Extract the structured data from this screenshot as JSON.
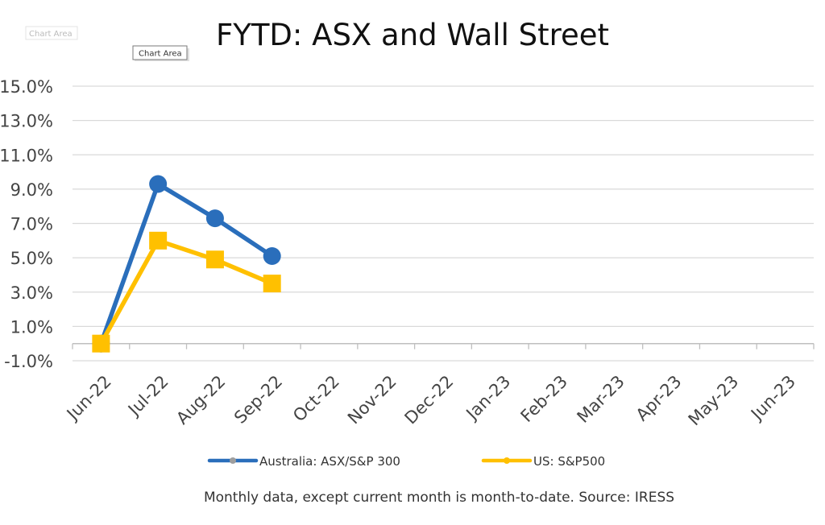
{
  "tooltips": {
    "ghost_label": "Chart Area",
    "hover_label": "Chart Area"
  },
  "footnote": "Monthly data, except current month is month-to-date.  Source: IRESS",
  "chart_data": {
    "type": "line",
    "title": "FYTD: ASX and Wall Street",
    "xlabel": "",
    "ylabel": "",
    "ylim": [
      -1.0,
      15.0
    ],
    "yticks": [
      -1.0,
      1.0,
      3.0,
      5.0,
      7.0,
      9.0,
      11.0,
      13.0,
      15.0
    ],
    "ytick_labels": [
      "-1.0%",
      "1.0%",
      "3.0%",
      "5.0%",
      "7.0%",
      "9.0%",
      "11.0%",
      "13.0%",
      "15.0%"
    ],
    "x_axis_crosses_at": 0,
    "categories": [
      "Jun-22",
      "Jul-22",
      "Aug-22",
      "Sep-22",
      "Oct-22",
      "Nov-22",
      "Dec-22",
      "Jan-23",
      "Feb-23",
      "Mar-23",
      "Apr-23",
      "May-23",
      "Jun-23"
    ],
    "grid": "horizontal",
    "legend_position": "bottom",
    "series": [
      {
        "name": "Australia: ASX/S&P 300",
        "values": [
          0.0,
          9.3,
          7.3,
          5.1,
          null,
          null,
          null,
          null,
          null,
          null,
          null,
          null,
          null
        ],
        "color": "#2A6EBB",
        "marker": "circle"
      },
      {
        "name": "US: S&P500",
        "values": [
          0.0,
          6.0,
          4.9,
          3.5,
          null,
          null,
          null,
          null,
          null,
          null,
          null,
          null,
          null
        ],
        "color": "#FFC000",
        "marker": "square"
      }
    ]
  }
}
